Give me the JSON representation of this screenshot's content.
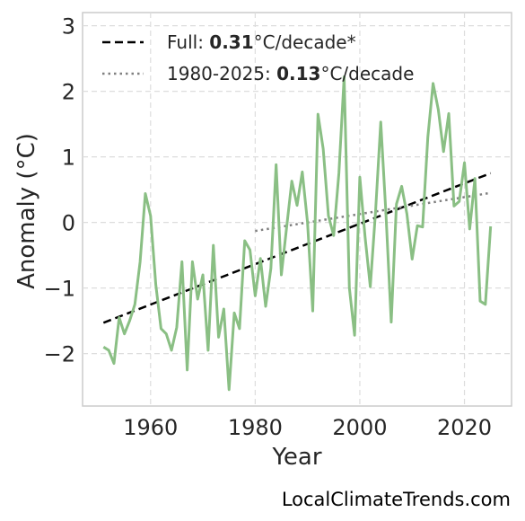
{
  "chart_data": {
    "type": "line",
    "xlabel": "Year",
    "ylabel": "Anomaly (°C)",
    "xlim": [
      1947,
      2029
    ],
    "ylim": [
      -2.8,
      3.2
    ],
    "xticks": [
      1960,
      1980,
      2000,
      2020
    ],
    "yticks": [
      3,
      2,
      1,
      0,
      -1,
      -2
    ],
    "ytick_labels": [
      "3",
      "2",
      "1",
      "0",
      "−1",
      "−2"
    ],
    "grid": true,
    "legend_position": "top-left",
    "colors": {
      "series": "#8abf84",
      "full_trend": "#000000",
      "recent_trend": "#808080"
    },
    "series": [
      {
        "x": [
          1951,
          1952,
          1953,
          1954,
          1955,
          1956,
          1957,
          1958,
          1959,
          1960,
          1961,
          1962,
          1963,
          1964,
          1965,
          1966,
          1967,
          1968,
          1969,
          1970,
          1971,
          1972,
          1973,
          1974,
          1975,
          1976,
          1977,
          1978,
          1979,
          1980,
          1981,
          1982,
          1983,
          1984,
          1985,
          1986,
          1987,
          1988,
          1989,
          1990,
          1991,
          1992,
          1993,
          1994,
          1995,
          1996,
          1997,
          1998,
          1999,
          2000,
          2001,
          2002,
          2003,
          2004,
          2005,
          2006,
          2007,
          2008,
          2009,
          2010,
          2011,
          2012,
          2013,
          2014,
          2015,
          2016,
          2017,
          2018,
          2019,
          2020,
          2021,
          2022,
          2023,
          2024,
          2025
        ],
        "values": [
          -1.9,
          -1.95,
          -2.15,
          -1.45,
          -1.7,
          -1.5,
          -1.25,
          -0.6,
          0.44,
          0.1,
          -0.95,
          -1.62,
          -1.7,
          -1.95,
          -1.6,
          -0.6,
          -2.25,
          -0.6,
          -1.17,
          -0.8,
          -1.95,
          -0.35,
          -1.75,
          -1.32,
          -2.55,
          -1.38,
          -1.62,
          -0.28,
          -0.42,
          -1.12,
          -0.55,
          -1.28,
          -0.7,
          0.88,
          -0.8,
          -0.08,
          0.63,
          0.26,
          0.77,
          0.0,
          -1.35,
          1.65,
          1.12,
          0.1,
          -0.2,
          0.75,
          2.22,
          -1.0,
          -1.72,
          0.69,
          -0.22,
          -0.98,
          0.16,
          1.53,
          0.12,
          -1.52,
          0.28,
          0.55,
          0.13,
          -0.56,
          -0.05,
          -0.07,
          1.3,
          2.12,
          1.72,
          1.08,
          1.66,
          0.25,
          0.32,
          0.91,
          -0.1,
          0.67,
          -1.2,
          -1.25,
          -0.06
        ]
      }
    ],
    "trends": [
      {
        "legend_prefix": "Full: ",
        "legend_value": "0.31",
        "legend_suffix": "°C/decade*",
        "x": [
          1951,
          2025
        ],
        "y": [
          -1.53,
          0.75
        ],
        "style": "dashed"
      },
      {
        "legend_prefix": "1980-2025: ",
        "legend_value": "0.13",
        "legend_suffix": "°C/decade",
        "x": [
          1980,
          2025
        ],
        "y": [
          -0.13,
          0.45
        ],
        "style": "dotted"
      }
    ]
  },
  "footer": {
    "source": "LocalClimateTrends.com"
  }
}
